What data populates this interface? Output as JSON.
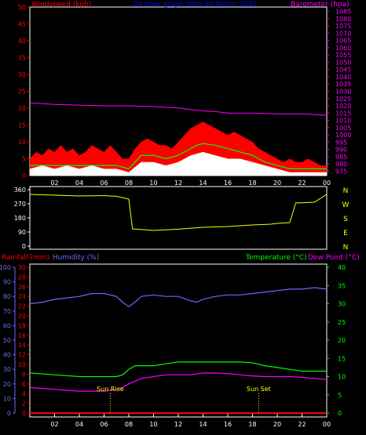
{
  "chart_data": [
    {
      "type": "line",
      "title": "24 hour graph data   30 March 2021",
      "left_axis_label": "Windspeed (kph)",
      "right_axis_label": "Barometer (hpa)",
      "left_ylim": [
        0,
        50
      ],
      "left_ticks": [
        "0",
        "5",
        "10",
        "15",
        "20",
        "25",
        "30",
        "35",
        "40",
        "45",
        "50"
      ],
      "right_ylim": [
        972,
        1088
      ],
      "right_ticks": [
        "975",
        "980",
        "985",
        "990",
        "995",
        "1000",
        "1005",
        "1010",
        "1015",
        "1020",
        "1025",
        "1030",
        "1035",
        "1040",
        "1045",
        "1050",
        "1055",
        "1060",
        "1065",
        "1070",
        "1075",
        "1080",
        "1085"
      ],
      "x_hours": [
        2,
        4,
        6,
        8,
        10,
        12,
        14,
        16,
        18,
        20,
        22,
        24
      ],
      "x_tick_labels": [
        "02",
        "04",
        "06",
        "08",
        "10",
        "12",
        "14",
        "16",
        "18",
        "20",
        "22",
        "00"
      ],
      "colors": {
        "gust": "#ff0000",
        "average": "#00ff00",
        "speed": "#ffffff",
        "barometer": "#ff00ff",
        "left_text": "#ff0000",
        "right_text": "#ff00ff",
        "title": "#0000ff"
      },
      "series": [
        {
          "key": "barometer",
          "axis": "right",
          "points": [
            [
              0,
              1022
            ],
            [
              2,
              1021
            ],
            [
              4,
              1020.5
            ],
            [
              6,
              1020
            ],
            [
              8,
              1020
            ],
            [
              10,
              1019.5
            ],
            [
              12,
              1018.5
            ],
            [
              13,
              1017.5
            ],
            [
              14,
              1016.5
            ],
            [
              15,
              1016
            ],
            [
              16,
              1015
            ],
            [
              18,
              1015
            ],
            [
              20,
              1014.5
            ],
            [
              22,
              1014.5
            ],
            [
              23,
              1014
            ],
            [
              24,
              1013.5
            ]
          ]
        },
        {
          "key": "gust",
          "axis": "left",
          "points": [
            [
              0,
              5
            ],
            [
              0.5,
              7
            ],
            [
              1,
              6
            ],
            [
              1.5,
              8
            ],
            [
              2,
              7
            ],
            [
              2.5,
              9
            ],
            [
              3,
              7
            ],
            [
              3.5,
              8
            ],
            [
              4,
              6
            ],
            [
              4.5,
              7
            ],
            [
              5,
              9
            ],
            [
              5.5,
              8
            ],
            [
              6,
              7
            ],
            [
              6.5,
              9
            ],
            [
              7,
              7
            ],
            [
              7.5,
              5
            ],
            [
              8,
              5
            ],
            [
              8.5,
              8
            ],
            [
              9,
              10
            ],
            [
              9.5,
              11
            ],
            [
              10,
              10
            ],
            [
              10.5,
              9
            ],
            [
              11,
              9
            ],
            [
              11.5,
              8
            ],
            [
              12,
              10
            ],
            [
              12.5,
              12
            ],
            [
              13,
              14
            ],
            [
              13.5,
              15
            ],
            [
              14,
              16
            ],
            [
              14.5,
              15
            ],
            [
              15,
              14
            ],
            [
              15.5,
              13
            ],
            [
              16,
              12
            ],
            [
              16.5,
              13
            ],
            [
              17,
              12
            ],
            [
              17.5,
              11
            ],
            [
              18,
              10
            ],
            [
              18.5,
              8
            ],
            [
              19,
              7
            ],
            [
              19.5,
              6
            ],
            [
              20,
              5
            ],
            [
              20.5,
              4
            ],
            [
              21,
              5
            ],
            [
              21.5,
              4
            ],
            [
              22,
              4
            ],
            [
              22.5,
              5
            ],
            [
              23,
              4
            ],
            [
              23.5,
              3
            ],
            [
              24,
              3
            ]
          ]
        },
        {
          "key": "average",
          "axis": "left",
          "points": [
            [
              0,
              3
            ],
            [
              1,
              3
            ],
            [
              2,
              3
            ],
            [
              3,
              3
            ],
            [
              4,
              3
            ],
            [
              5,
              3
            ],
            [
              6,
              3
            ],
            [
              7,
              3
            ],
            [
              8,
              2
            ],
            [
              8.5,
              4
            ],
            [
              9,
              6
            ],
            [
              10,
              6
            ],
            [
              11,
              5
            ],
            [
              12,
              6
            ],
            [
              12.5,
              7
            ],
            [
              13,
              8
            ],
            [
              13.5,
              9
            ],
            [
              14,
              9.5
            ],
            [
              15,
              9
            ],
            [
              16,
              8
            ],
            [
              17,
              7
            ],
            [
              18,
              6
            ],
            [
              18.5,
              5
            ],
            [
              19,
              4
            ],
            [
              20,
              3
            ],
            [
              21,
              2
            ],
            [
              22,
              2
            ],
            [
              23,
              2
            ],
            [
              24,
              2
            ]
          ]
        },
        {
          "key": "speed",
          "axis": "left",
          "points": [
            [
              0,
              2
            ],
            [
              1,
              3
            ],
            [
              2,
              2
            ],
            [
              3,
              3
            ],
            [
              4,
              2
            ],
            [
              5,
              3
            ],
            [
              6,
              2
            ],
            [
              7,
              2
            ],
            [
              8,
              1
            ],
            [
              9,
              4
            ],
            [
              10,
              4
            ],
            [
              11,
              3
            ],
            [
              12,
              4
            ],
            [
              13,
              6
            ],
            [
              14,
              7
            ],
            [
              15,
              6
            ],
            [
              16,
              5
            ],
            [
              17,
              5
            ],
            [
              18,
              4
            ],
            [
              19,
              3
            ],
            [
              20,
              2
            ],
            [
              21,
              1
            ],
            [
              22,
              1
            ],
            [
              23,
              1
            ],
            [
              24,
              1
            ]
          ]
        }
      ]
    },
    {
      "type": "line",
      "ylim": [
        0,
        360
      ],
      "left_ticks": [
        "0",
        "90",
        "180",
        "270",
        "360"
      ],
      "compass": [
        "N",
        "W",
        "S",
        "E",
        "N"
      ],
      "colors": {
        "direction": "#ffff00",
        "compass": "#ffff00"
      },
      "series": [
        {
          "key": "direction",
          "points": [
            [
              0,
              330
            ],
            [
              2,
              325
            ],
            [
              4,
              320
            ],
            [
              6,
              322
            ],
            [
              7,
              318
            ],
            [
              8,
              300
            ],
            [
              8.3,
              110
            ],
            [
              10,
              100
            ],
            [
              12,
              108
            ],
            [
              14,
              120
            ],
            [
              16,
              125
            ],
            [
              18,
              135
            ],
            [
              19.5,
              140
            ],
            [
              20,
              145
            ],
            [
              21,
              150
            ],
            [
              21.5,
              275
            ],
            [
              23,
              280
            ],
            [
              24,
              330
            ]
          ]
        }
      ]
    },
    {
      "type": "line",
      "left_label_1": "Rainfall (mm)",
      "left_label_2": "Humidity (%)",
      "right_label_1": "Temperature (°C)",
      "right_label_2": "Dew Point (°C)",
      "humidity_ticks": [
        "0",
        "10",
        "20",
        "30",
        "40",
        "50",
        "60",
        "70",
        "80",
        "90",
        "100"
      ],
      "rain_ticks": [
        "0",
        "2",
        "4",
        "6",
        "8",
        "10",
        "12",
        "14",
        "16",
        "18",
        "20",
        "22",
        "24",
        "26",
        "28",
        "30"
      ],
      "temp_ticks": [
        "0",
        "5",
        "10",
        "15",
        "20",
        "25",
        "30",
        "35",
        "40"
      ],
      "humidity_ylim": [
        0,
        100
      ],
      "rain_ylim": [
        0,
        30
      ],
      "temp_ylim": [
        0,
        40
      ],
      "colors": {
        "rain_text": "#ff0000",
        "humidity": "#6a6aff",
        "temperature": "#00ff00",
        "dewpoint": "#ff00ff",
        "temp_text": "#00ff00",
        "dew_text": "#ff00ff",
        "sun": "#ffff00"
      },
      "annotations": [
        {
          "label": "Sun Rise",
          "hour": 6.5
        },
        {
          "label": "Sun Set",
          "hour": 18.5
        }
      ],
      "series": [
        {
          "key": "humidity",
          "axis": "humidity",
          "points": [
            [
              0,
              75
            ],
            [
              1,
              76
            ],
            [
              2,
              78
            ],
            [
              3,
              79
            ],
            [
              4,
              80
            ],
            [
              5,
              82
            ],
            [
              6,
              82
            ],
            [
              7,
              80
            ],
            [
              7.5,
              76
            ],
            [
              8,
              73
            ],
            [
              8.5,
              76
            ],
            [
              9,
              80
            ],
            [
              10,
              81
            ],
            [
              11,
              80
            ],
            [
              12,
              80
            ],
            [
              13,
              77
            ],
            [
              13.5,
              76
            ],
            [
              14,
              78
            ],
            [
              15,
              80
            ],
            [
              16,
              81
            ],
            [
              17,
              81
            ],
            [
              18,
              82
            ],
            [
              19,
              83
            ],
            [
              20,
              84
            ],
            [
              21,
              85
            ],
            [
              22,
              85
            ],
            [
              23,
              86
            ],
            [
              24,
              85
            ]
          ]
        },
        {
          "key": "temperature",
          "axis": "temp",
          "points": [
            [
              0,
              11
            ],
            [
              2,
              10.5
            ],
            [
              4,
              10
            ],
            [
              6,
              10
            ],
            [
              7,
              10
            ],
            [
              7.5,
              10.5
            ],
            [
              8,
              12
            ],
            [
              8.5,
              13
            ],
            [
              9,
              13
            ],
            [
              10,
              13
            ],
            [
              11,
              13.5
            ],
            [
              12,
              14
            ],
            [
              13,
              14
            ],
            [
              14,
              14
            ],
            [
              15,
              14
            ],
            [
              16,
              14
            ],
            [
              17,
              14
            ],
            [
              18,
              13.8
            ],
            [
              19,
              13
            ],
            [
              20,
              12.5
            ],
            [
              21,
              12
            ],
            [
              22,
              11.5
            ],
            [
              23,
              11.5
            ],
            [
              24,
              11.5
            ]
          ]
        },
        {
          "key": "dewpoint",
          "axis": "temp",
          "points": [
            [
              0,
              7
            ],
            [
              2,
              6.5
            ],
            [
              4,
              6
            ],
            [
              6,
              6
            ],
            [
              7,
              6.5
            ],
            [
              7.5,
              7
            ],
            [
              8,
              8
            ],
            [
              9,
              9.5
            ],
            [
              10,
              10
            ],
            [
              11,
              10.5
            ],
            [
              12,
              10.5
            ],
            [
              13,
              10.5
            ],
            [
              14,
              11
            ],
            [
              15,
              11
            ],
            [
              16,
              10.8
            ],
            [
              17,
              10.5
            ],
            [
              18,
              10.2
            ],
            [
              19,
              10
            ],
            [
              20,
              10
            ],
            [
              21,
              10
            ],
            [
              22,
              9.8
            ],
            [
              23,
              9.5
            ],
            [
              24,
              9.2
            ]
          ]
        },
        {
          "key": "rain",
          "axis": "rain",
          "points": [
            [
              0,
              0
            ],
            [
              24,
              0
            ]
          ]
        }
      ]
    }
  ]
}
